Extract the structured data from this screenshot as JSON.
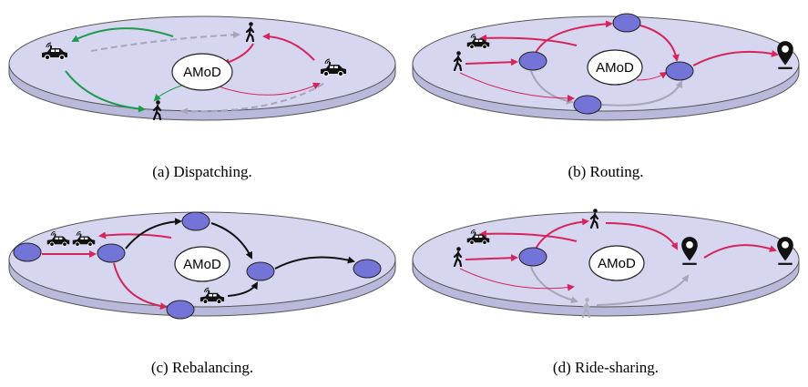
{
  "panels": [
    {
      "hub_label": "AMoD",
      "caption": "(a) Dispatching."
    },
    {
      "hub_label": "AMoD",
      "caption": "(b) Routing."
    },
    {
      "hub_label": "AMoD",
      "caption": "(c) Rebalancing."
    },
    {
      "hub_label": "AMoD",
      "caption": "(d) Ride-sharing."
    }
  ]
}
